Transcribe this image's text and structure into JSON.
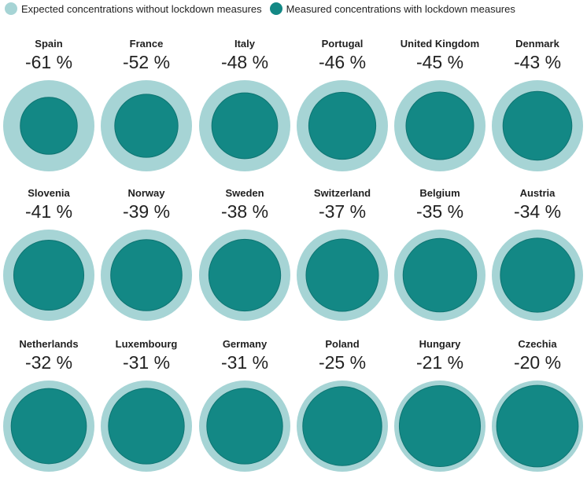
{
  "legend": {
    "expected_label": "Expected concentrations without lockdown measures",
    "measured_label": "Measured concentrations with lockdown measures"
  },
  "colors": {
    "expected": "#a6d4d5",
    "measured": "#138885",
    "measured_edge": "#0e7472"
  },
  "chart_data": {
    "type": "proportional-circles",
    "series": [
      {
        "name": "Expected concentrations without lockdown measures",
        "relative_value": 1.0
      },
      {
        "name": "Measured concentrations with lockdown measures"
      }
    ],
    "items": [
      {
        "country": "Spain",
        "label": "-61 %",
        "change": -61
      },
      {
        "country": "France",
        "label": "-52 %",
        "change": -52
      },
      {
        "country": "Italy",
        "label": "-48 %",
        "change": -48
      },
      {
        "country": "Portugal",
        "label": "-46 %",
        "change": -46
      },
      {
        "country": "United Kingdom",
        "label": "-45 %",
        "change": -45
      },
      {
        "country": "Denmark",
        "label": "-43 %",
        "change": -43
      },
      {
        "country": "Slovenia",
        "label": "-41 %",
        "change": -41
      },
      {
        "country": "Norway",
        "label": "-39 %",
        "change": -39
      },
      {
        "country": "Sweden",
        "label": "-38 %",
        "change": -38
      },
      {
        "country": "Switzerland",
        "label": "-37 %",
        "change": -37
      },
      {
        "country": "Belgium",
        "label": "-35 %",
        "change": -35
      },
      {
        "country": "Austria",
        "label": "-34 %",
        "change": -34
      },
      {
        "country": "Netherlands",
        "label": "-32 %",
        "change": -32
      },
      {
        "country": "Luxembourg",
        "label": "-31 %",
        "change": -31
      },
      {
        "country": "Germany",
        "label": "-31 %",
        "change": -31
      },
      {
        "country": "Poland",
        "label": "-25 %",
        "change": -25
      },
      {
        "country": "Hungary",
        "label": "-21 %",
        "change": -21
      },
      {
        "country": "Czechia",
        "label": "-20 %",
        "change": -20
      }
    ]
  }
}
